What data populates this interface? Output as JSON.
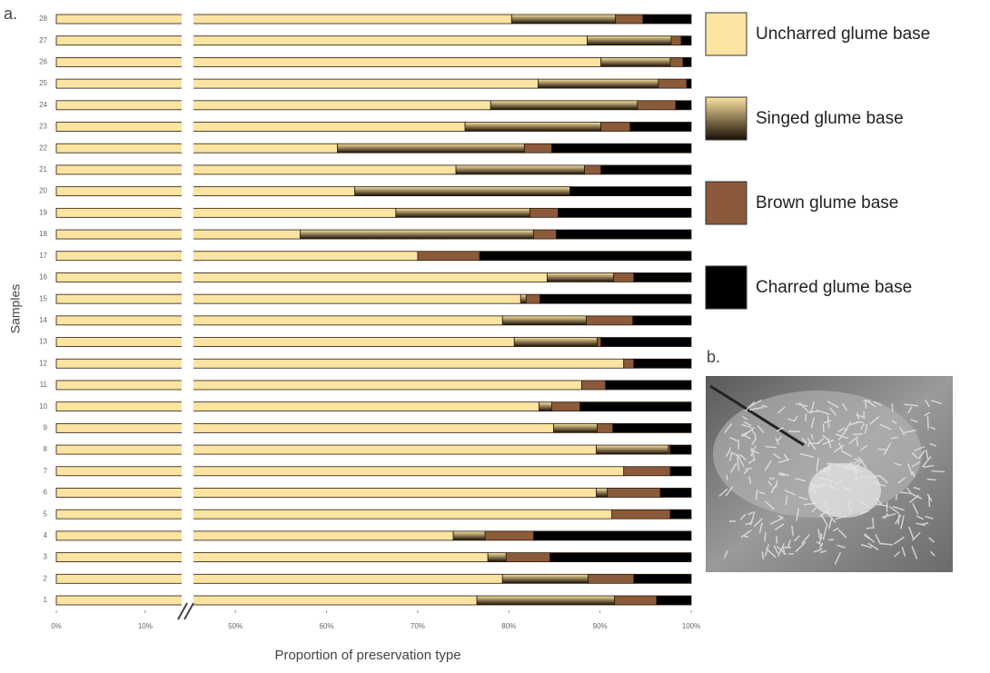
{
  "panel_labels": [
    "a.",
    "b."
  ],
  "chart_data": {
    "type": "stacked-barh",
    "xlabel": "Proportion of preservation type",
    "ylabel": "Samples",
    "categories": [
      "1",
      "2",
      "3",
      "4",
      "5",
      "6",
      "7",
      "8",
      "9",
      "10",
      "11",
      "12",
      "13",
      "14",
      "15",
      "16",
      "17",
      "18",
      "19",
      "20",
      "21",
      "22",
      "23",
      "24",
      "25",
      "26",
      "27",
      "28"
    ],
    "xlim": [
      0,
      100
    ],
    "x_break": [
      14,
      45.5
    ],
    "xticks": [
      {
        "value": 0,
        "label": "0%"
      },
      {
        "value": 10,
        "label": "10%"
      },
      {
        "value": 50,
        "label": "50%"
      },
      {
        "value": 60,
        "label": "60%"
      },
      {
        "value": 70,
        "label": "70%"
      },
      {
        "value": 80,
        "label": "80%"
      },
      {
        "value": 90,
        "label": "90%"
      },
      {
        "value": 100,
        "label": "100%"
      }
    ],
    "series": [
      {
        "name": "Uncharred glume base",
        "color": "#fbe3a1",
        "values": [
          76.5,
          79.3,
          77.7,
          73.9,
          91.3,
          89.6,
          92.6,
          89.6,
          84.9,
          83.3,
          88.0,
          92.6,
          80.6,
          79.3,
          81.3,
          84.2,
          70.0,
          57.1,
          67.6,
          63.1,
          74.2,
          61.2,
          75.2,
          78.0,
          83.2,
          90.1,
          88.6,
          80.3
        ]
      },
      {
        "name": "Singed glume base",
        "color": "#5a3d1c",
        "gradient": [
          "#fbe3a1",
          "#1a0f05"
        ],
        "values": [
          15.1,
          9.4,
          2.0,
          3.5,
          0,
          1.2,
          0,
          7.9,
          4.8,
          1.4,
          0,
          0,
          9.1,
          9.2,
          0.6,
          7.3,
          0,
          25.6,
          14.7,
          23.6,
          14.1,
          20.5,
          14.9,
          16.1,
          13.2,
          7.6,
          9.2,
          11.4
        ]
      },
      {
        "name": "Brown glume base",
        "color": "#8b5a3a",
        "values": [
          4.6,
          5.0,
          4.8,
          5.3,
          6.4,
          5.8,
          5.1,
          0.2,
          1.7,
          3.1,
          2.6,
          1.1,
          0.4,
          5.1,
          1.5,
          2.2,
          6.8,
          2.5,
          3.1,
          0,
          1.8,
          3.0,
          3.2,
          4.2,
          3.1,
          1.4,
          1.1,
          3.0
        ]
      },
      {
        "name": "Charred glume base",
        "color": "#000000",
        "values": [
          3.8,
          6.3,
          15.5,
          17.3,
          2.3,
          3.4,
          2.3,
          2.3,
          8.6,
          12.2,
          9.4,
          6.3,
          9.9,
          6.4,
          16.6,
          6.3,
          23.2,
          14.8,
          14.6,
          13.3,
          9.9,
          15.3,
          6.7,
          1.7,
          0.5,
          0.9,
          1.1,
          5.3
        ]
      }
    ]
  }
}
